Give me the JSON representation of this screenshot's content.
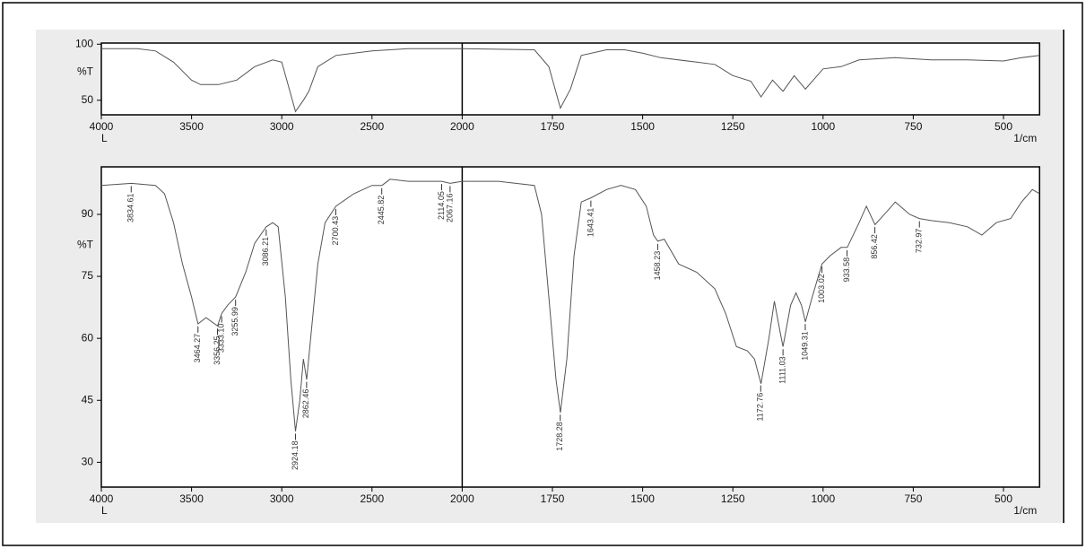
{
  "chart_data": [
    {
      "type": "line",
      "ylabel": "%T",
      "xlabel": "1/cm",
      "x_note": "L",
      "xlim": [
        4000,
        400
      ],
      "ylim": [
        37,
        101
      ],
      "xticks": [
        4000,
        3500,
        3000,
        2500,
        2000,
        1750,
        1500,
        1250,
        1000,
        750,
        500
      ],
      "yticks": [
        50,
        100
      ],
      "series": [
        {
          "color": "#555555",
          "x": [
            4000,
            3800,
            3700,
            3600,
            3500,
            3450,
            3350,
            3250,
            3150,
            3050,
            3000,
            2950,
            2924,
            2880,
            2850,
            2800,
            2700,
            2500,
            2300,
            2000,
            1800,
            1760,
            1728,
            1700,
            1670,
            1600,
            1550,
            1500,
            1450,
            1350,
            1300,
            1250,
            1200,
            1172,
            1140,
            1111,
            1080,
            1049,
            1000,
            950,
            900,
            850,
            800,
            700,
            600,
            500,
            450,
            400
          ],
          "values": [
            96,
            96,
            94,
            84,
            68,
            64,
            64,
            68,
            80,
            86,
            84,
            55,
            40,
            50,
            58,
            80,
            90,
            94,
            96,
            96,
            95,
            80,
            43,
            60,
            90,
            95,
            95,
            92,
            88,
            84,
            82,
            72,
            67,
            53,
            68,
            58,
            72,
            60,
            78,
            80,
            86,
            87,
            88,
            86,
            86,
            85,
            88,
            90
          ]
        }
      ]
    },
    {
      "type": "line",
      "ylabel": "%T",
      "xlabel": "1/cm",
      "x_note": "L",
      "xlim": [
        4000,
        400
      ],
      "ylim": [
        24,
        101.5
      ],
      "xticks": [
        4000,
        3500,
        3000,
        2500,
        2000,
        1750,
        1500,
        1250,
        1000,
        750,
        500
      ],
      "yticks": [
        30,
        45,
        60,
        75,
        90
      ],
      "series": [
        {
          "color": "#555555",
          "x": [
            4000,
            3834,
            3700,
            3650,
            3600,
            3550,
            3500,
            3464,
            3420,
            3356,
            3333,
            3300,
            3256,
            3200,
            3150,
            3086,
            3050,
            3020,
            2980,
            2950,
            2924,
            2900,
            2880,
            2862,
            2840,
            2800,
            2760,
            2700,
            2600,
            2500,
            2445,
            2400,
            2300,
            2200,
            2114,
            2067,
            2000,
            1900,
            1800,
            1780,
            1760,
            1740,
            1728,
            1710,
            1690,
            1670,
            1643,
            1600,
            1560,
            1520,
            1490,
            1470,
            1458,
            1440,
            1400,
            1350,
            1300,
            1270,
            1240,
            1210,
            1190,
            1172,
            1150,
            1135,
            1120,
            1111,
            1090,
            1075,
            1060,
            1049,
            1030,
            1003,
            980,
            950,
            933,
            900,
            880,
            856,
            820,
            800,
            760,
            733,
            700,
            650,
            600,
            560,
            520,
            480,
            450,
            420,
            400
          ],
          "values": [
            97,
            97.5,
            97,
            95,
            88,
            78,
            70,
            63.5,
            65,
            63,
            66,
            68,
            70,
            76,
            83,
            87,
            88,
            87,
            70,
            50,
            37.5,
            45,
            55,
            50,
            60,
            78,
            88,
            92,
            95,
            97,
            97,
            98.5,
            98,
            98,
            98,
            97.5,
            98,
            98,
            97,
            90,
            70,
            50,
            42,
            55,
            80,
            93,
            94,
            96,
            97,
            96,
            92,
            85,
            83.5,
            84,
            78,
            76,
            72,
            66,
            58,
            57,
            55,
            49,
            60,
            69,
            62,
            58,
            68,
            71,
            68,
            64,
            70,
            78,
            80,
            82,
            82,
            88,
            92,
            87.5,
            91,
            93,
            90,
            89,
            88.5,
            88,
            87,
            85,
            88,
            89,
            93,
            96,
            95
          ]
        }
      ],
      "peaks": [
        {
          "value": 3834.61,
          "label": "3834.61"
        },
        {
          "value": 3464.27,
          "label": "3464.27"
        },
        {
          "value": 3356.25,
          "label": "3356.25"
        },
        {
          "value": 3333.1,
          "label": "3333.10"
        },
        {
          "value": 3255.99,
          "label": "3255.99"
        },
        {
          "value": 3086.21,
          "label": "3086.21"
        },
        {
          "value": 2924.18,
          "label": "2924.18"
        },
        {
          "value": 2862.46,
          "label": "2862.46"
        },
        {
          "value": 2700.43,
          "label": "2700.43"
        },
        {
          "value": 2445.82,
          "label": "2445.82"
        },
        {
          "value": 2114.05,
          "label": "2114.05"
        },
        {
          "value": 2067.16,
          "label": "2067.16"
        },
        {
          "value": 1728.28,
          "label": "1728.28"
        },
        {
          "value": 1643.41,
          "label": "1643.41"
        },
        {
          "value": 1458.23,
          "label": "1458.23"
        },
        {
          "value": 1172.76,
          "label": "1172.76"
        },
        {
          "value": 1111.03,
          "label": "1111.03"
        },
        {
          "value": 1049.31,
          "label": "1049.31"
        },
        {
          "value": 1003.02,
          "label": "1003.02"
        },
        {
          "value": 933.58,
          "label": "933.58"
        },
        {
          "value": 856.42,
          "label": "856.42"
        },
        {
          "value": 732.97,
          "label": "732.97"
        }
      ]
    }
  ]
}
